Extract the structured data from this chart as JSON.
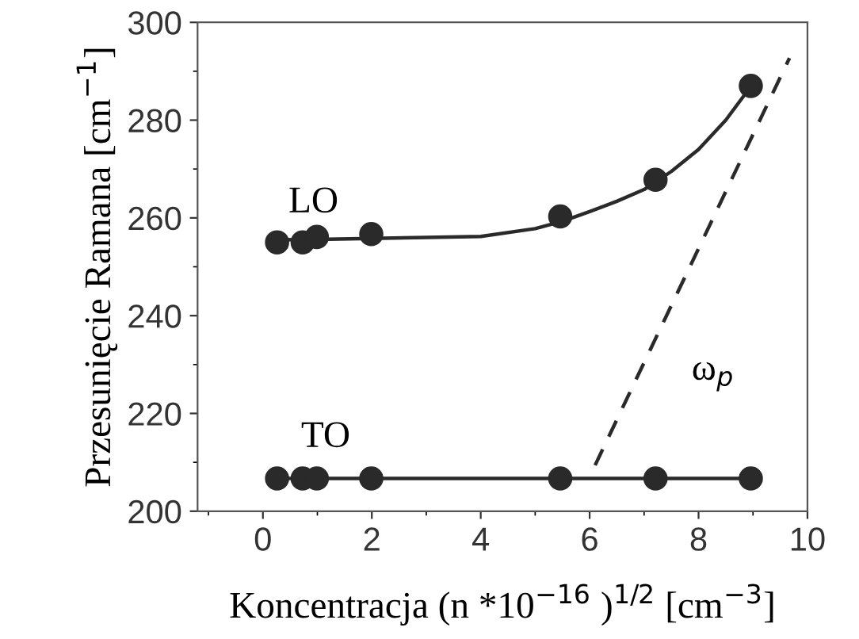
{
  "chart_data": {
    "type": "scatter",
    "xlabel": "Koncentracja (n *10$^{−16}$ )$^{1/2}$ [cm$^{−3}$]",
    "ylabel": "Przesunięcie Ramana [cm$^{−1}$]",
    "xlim": [
      -1.2,
      10
    ],
    "xticks": [
      0,
      2,
      4,
      6,
      8,
      10
    ],
    "ylim": [
      200,
      300
    ],
    "yticks": [
      200,
      220,
      240,
      260,
      280,
      300
    ],
    "grid": false,
    "legend": false,
    "series": [
      {
        "color": "#2a2a2a",
        "marker": "circle",
        "x": [
          0.26,
          0.73,
          0.99,
          1.99,
          5.46,
          7.21,
          8.96
        ],
        "values": [
          255,
          255,
          256.1,
          256.7,
          260.3,
          267.8,
          287
        ]
      },
      {
        "type": "line",
        "color": "#2a2a2a",
        "marker": "none",
        "line_style": "solid",
        "x": [
          0.26,
          1,
          2,
          3,
          4,
          5,
          5.5,
          6,
          6.5,
          7,
          7.5,
          8,
          8.5,
          9
        ],
        "values": [
          255.5,
          255.6,
          255.8,
          256,
          256.2,
          257.8,
          259.3,
          261.3,
          263.4,
          265.8,
          269.5,
          274,
          280,
          287.5
        ]
      },
      {
        "type": "line",
        "color": "#2a2a2a",
        "marker": "circle",
        "line_style": "solid",
        "x": [
          0.26,
          0.73,
          0.99,
          1.99,
          5.46,
          7.21,
          8.96
        ],
        "values": [
          206.7,
          206.7,
          206.7,
          206.7,
          206.7,
          206.7,
          206.7
        ]
      },
      {
        "type": "line",
        "color": "#2a2a2a",
        "marker": "none",
        "line_style": "dashed",
        "x": [
          6.1,
          9.67
        ],
        "values": [
          209.4,
          292.7
        ]
      }
    ],
    "annotations": [
      "LO",
      "TO",
      "ω$_{p}$"
    ]
  }
}
